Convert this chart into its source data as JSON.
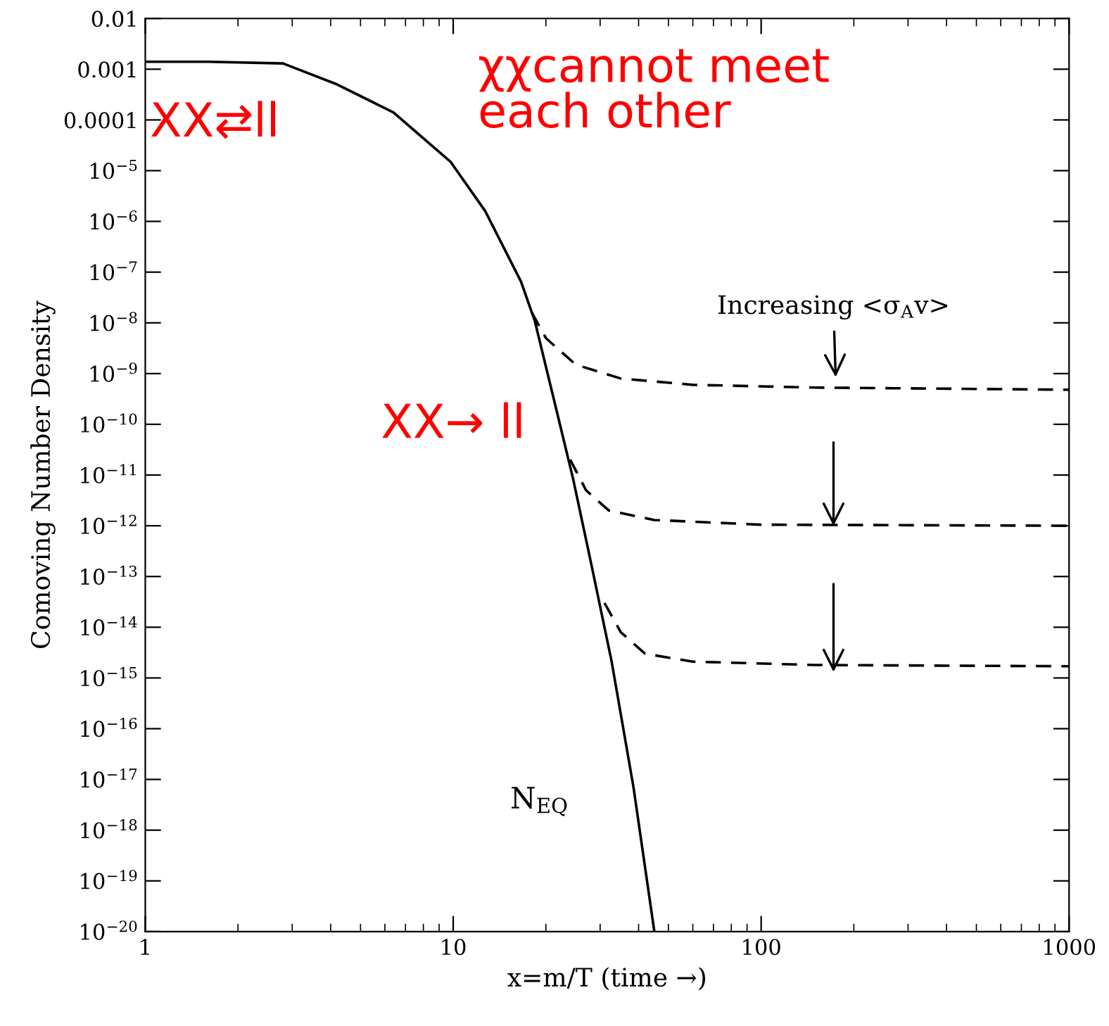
{
  "chart_data": {
    "type": "line",
    "xlabel": "x=m/T (time →)",
    "ylabel": "Comoving Number Density",
    "log": "xy",
    "xlim": [
      1,
      1000
    ],
    "xticks": [
      1,
      10,
      100,
      1000
    ],
    "ylim": [
      1e-20,
      0.01
    ],
    "yticks": [
      0.01,
      0.001,
      0.0001,
      {
        "value": 1e-05,
        "label": "10$^{−5}$"
      },
      {
        "value": 1e-06,
        "label": "10$^{−6}$"
      },
      {
        "value": 1e-07,
        "label": "10$^{−7}$"
      },
      {
        "value": 1e-08,
        "label": "10$^{−8}$"
      },
      {
        "value": 1e-09,
        "label": "10$^{−9}$"
      },
      {
        "value": 1e-10,
        "label": "10$^{−10}$"
      },
      {
        "value": 1e-11,
        "label": "10$^{−11}$"
      },
      {
        "value": 1e-12,
        "label": "10$^{−12}$"
      },
      {
        "value": 1e-13,
        "label": "10$^{−13}$"
      },
      {
        "value": 1e-14,
        "label": "10$^{−14}$"
      },
      {
        "value": 1e-15,
        "label": "10$^{−15}$"
      },
      {
        "value": 1e-16,
        "label": "10$^{−16}$"
      },
      {
        "value": 1e-17,
        "label": "10$^{−17}$"
      },
      {
        "value": 1e-18,
        "label": "10$^{−18}$"
      },
      {
        "value": 1e-19,
        "label": "10$^{−19}$"
      },
      {
        "value": 1e-20,
        "label": "10$^{−20}$"
      }
    ],
    "grid": false,
    "legend": false,
    "marker": "none",
    "series": [
      {
        "name": "N$_{EQ}$",
        "color": "#000000",
        "line_style": "solid",
        "x": [
          1,
          1.6,
          2.8,
          4.2,
          6.4,
          9.8,
          12.7,
          16.6,
          18.4,
          21.6,
          24.5,
          28,
          32.7,
          38.5,
          45
        ],
        "values": [
          0.0014,
          0.0014,
          0.0013,
          0.0005,
          0.00014,
          1.5e-05,
          1.6e-06,
          6.5e-08,
          1.1e-08,
          2e-10,
          8.5e-12,
          1.9e-13,
          2.1e-15,
          7e-18,
          1e-20
        ]
      },
      {
        "color": "#000000",
        "line_style": "dashed",
        "x": [
          18,
          20,
          25,
          35,
          60,
          150,
          1000
        ],
        "values": [
          1.6e-08,
          5e-09,
          1.5e-09,
          8e-10,
          6e-10,
          5.3e-10,
          4.8e-10
        ]
      },
      {
        "color": "#000000",
        "line_style": "dashed",
        "x": [
          24,
          27,
          32,
          45,
          100,
          1000
        ],
        "values": [
          2e-11,
          5e-12,
          2e-12,
          1.3e-12,
          1.05e-12,
          1e-12
        ]
      },
      {
        "color": "#000000",
        "line_style": "dashed",
        "x": [
          31,
          35,
          42,
          60,
          150,
          1000
        ],
        "values": [
          3e-14,
          8e-15,
          3e-15,
          2.1e-15,
          1.8e-15,
          1.7e-15
        ]
      }
    ],
    "annotations": [
      {
        "text": "Increasing <σ$_{A}$v>",
        "x": 175,
        "y": 5e-10
      },
      "XX⇄ll",
      "χχcannot meet\neach other",
      "XX→ ll"
    ]
  }
}
